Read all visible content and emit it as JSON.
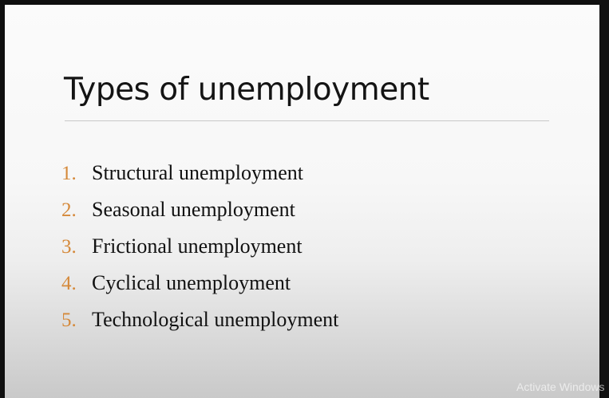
{
  "slide": {
    "title": "Types of unemployment",
    "items": [
      {
        "number": "1.",
        "text": "Structural unemployment"
      },
      {
        "number": "2.",
        "text": "Seasonal unemployment"
      },
      {
        "number": "3.",
        "text": "Frictional unemployment"
      },
      {
        "number": "4.",
        "text": "Cyclical unemployment"
      },
      {
        "number": "5.",
        "text": "Technological unemployment"
      }
    ]
  },
  "watermark": {
    "text": "Activate Windows"
  },
  "colors": {
    "number_accent": "#d5893a",
    "text": "#111111",
    "background_frame": "#0f0f0f"
  }
}
